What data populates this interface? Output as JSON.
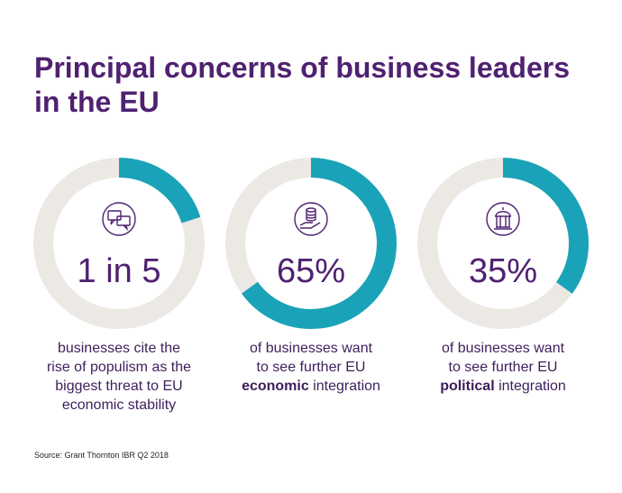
{
  "title": "Principal concerns of business leaders in the EU",
  "source": "Source: Grant Thornton IBR Q2 2018",
  "chart_data": [
    {
      "type": "donut",
      "values": [
        20
      ],
      "value_labels": [
        "1 in 5"
      ],
      "lim": [
        0,
        100
      ],
      "color": "#1aa3b8",
      "track_color": "#ece8e4",
      "caption_lines": [
        [
          {
            "text": "businesses cite the"
          }
        ],
        [
          {
            "text": "rise of populism as the"
          }
        ],
        [
          {
            "text": "biggest threat to EU"
          }
        ],
        [
          {
            "text": "economic stability"
          }
        ]
      ]
    },
    {
      "type": "donut",
      "values": [
        65
      ],
      "value_labels": [
        "65%"
      ],
      "lim": [
        0,
        100
      ],
      "color": "#1aa3b8",
      "track_color": "#ece8e4",
      "caption_lines": [
        [
          {
            "text": "of businesses want"
          }
        ],
        [
          {
            "text": "to see further EU"
          }
        ],
        [
          {
            "text": "economic",
            "bold": true
          },
          {
            "text": " integration"
          }
        ]
      ]
    },
    {
      "type": "donut",
      "values": [
        35
      ],
      "value_labels": [
        "35%"
      ],
      "lim": [
        0,
        100
      ],
      "color": "#1aa3b8",
      "track_color": "#ece8e4",
      "caption_lines": [
        [
          {
            "text": "of businesses want"
          }
        ],
        [
          {
            "text": "to see further EU"
          }
        ],
        [
          {
            "text": "political",
            "bold": true
          },
          {
            "text": " integration"
          }
        ]
      ]
    }
  ]
}
